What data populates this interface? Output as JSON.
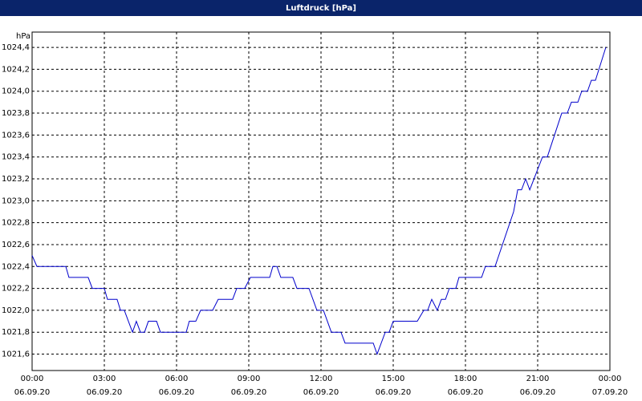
{
  "chart_data": {
    "type": "line",
    "title": "Luftdruck [hPa]",
    "y_unit": "hPa",
    "xlim": [
      0,
      24
    ],
    "ylim": [
      1021.45,
      1024.54
    ],
    "xticks": [
      {
        "value": 0,
        "label": "00:00"
      },
      {
        "value": 3,
        "label": "03:00"
      },
      {
        "value": 6,
        "label": "06:00"
      },
      {
        "value": 9,
        "label": "09:00"
      },
      {
        "value": 12,
        "label": "12:00"
      },
      {
        "value": 15,
        "label": "15:00"
      },
      {
        "value": 18,
        "label": "18:00"
      },
      {
        "value": 21,
        "label": "21:00"
      },
      {
        "value": 24,
        "label": "00:00"
      }
    ],
    "xtick_dates": [
      "06.09.20",
      "06.09.20",
      "06.09.20",
      "06.09.20",
      "06.09.20",
      "06.09.20",
      "06.09.20",
      "06.09.20",
      "07.09.20"
    ],
    "yticks": [
      {
        "value": 1021.6,
        "label": "1021,6"
      },
      {
        "value": 1021.8,
        "label": "1021,8"
      },
      {
        "value": 1022.0,
        "label": "1022,0"
      },
      {
        "value": 1022.2,
        "label": "1022,2"
      },
      {
        "value": 1022.4,
        "label": "1022,4"
      },
      {
        "value": 1022.6,
        "label": "1022,6"
      },
      {
        "value": 1022.8,
        "label": "1022,8"
      },
      {
        "value": 1023.0,
        "label": "1023,0"
      },
      {
        "value": 1023.2,
        "label": "1023,2"
      },
      {
        "value": 1023.4,
        "label": "1023,4"
      },
      {
        "value": 1023.6,
        "label": "1023,6"
      },
      {
        "value": 1023.8,
        "label": "1023,8"
      },
      {
        "value": 1024.0,
        "label": "1024,0"
      },
      {
        "value": 1024.2,
        "label": "1024,2"
      },
      {
        "value": 1024.4,
        "label": "1024,4"
      }
    ],
    "grid": true,
    "color": "#0000cc",
    "x": [
      0,
      0.2,
      1.4,
      1.53,
      2.33,
      2.5,
      3.0,
      3.13,
      3.53,
      3.67,
      3.83,
      4.0,
      4.17,
      4.33,
      4.5,
      4.67,
      4.83,
      5.17,
      5.33,
      6.4,
      6.53,
      6.8,
      7.0,
      7.5,
      7.73,
      8.33,
      8.5,
      8.83,
      9.07,
      9.87,
      10.0,
      10.17,
      10.33,
      10.83,
      11.0,
      11.5,
      11.83,
      12.1,
      12.43,
      12.83,
      13.0,
      14.17,
      14.33,
      14.67,
      14.83,
      15.0,
      16.0,
      16.27,
      16.43,
      16.6,
      16.83,
      17.0,
      17.17,
      17.33,
      17.6,
      17.73,
      18.67,
      18.83,
      19.23,
      20.0,
      20.17,
      20.33,
      20.5,
      20.67,
      21.2,
      21.4,
      22.0,
      22.23,
      22.4,
      22.67,
      22.83,
      23.07,
      23.23,
      23.4,
      23.83
    ],
    "values": [
      1022.5,
      1022.4,
      1022.4,
      1022.3,
      1022.3,
      1022.2,
      1022.2,
      1022.1,
      1022.1,
      1022.0,
      1022.0,
      1021.9,
      1021.8,
      1021.9,
      1021.8,
      1021.8,
      1021.9,
      1021.9,
      1021.8,
      1021.8,
      1021.9,
      1021.9,
      1022.0,
      1022.0,
      1022.1,
      1022.1,
      1022.2,
      1022.2,
      1022.3,
      1022.3,
      1022.4,
      1022.4,
      1022.3,
      1022.3,
      1022.2,
      1022.2,
      1022.0,
      1022.0,
      1021.8,
      1021.8,
      1021.7,
      1021.7,
      1021.6,
      1021.8,
      1021.8,
      1021.9,
      1021.9,
      1022.0,
      1022.0,
      1022.1,
      1022.0,
      1022.1,
      1022.1,
      1022.2,
      1022.2,
      1022.3,
      1022.3,
      1022.4,
      1022.4,
      1022.9,
      1023.1,
      1023.1,
      1023.2,
      1023.1,
      1023.4,
      1023.4,
      1023.8,
      1023.8,
      1023.9,
      1023.9,
      1024.0,
      1024.0,
      1024.1,
      1024.1,
      1024.4
    ]
  }
}
